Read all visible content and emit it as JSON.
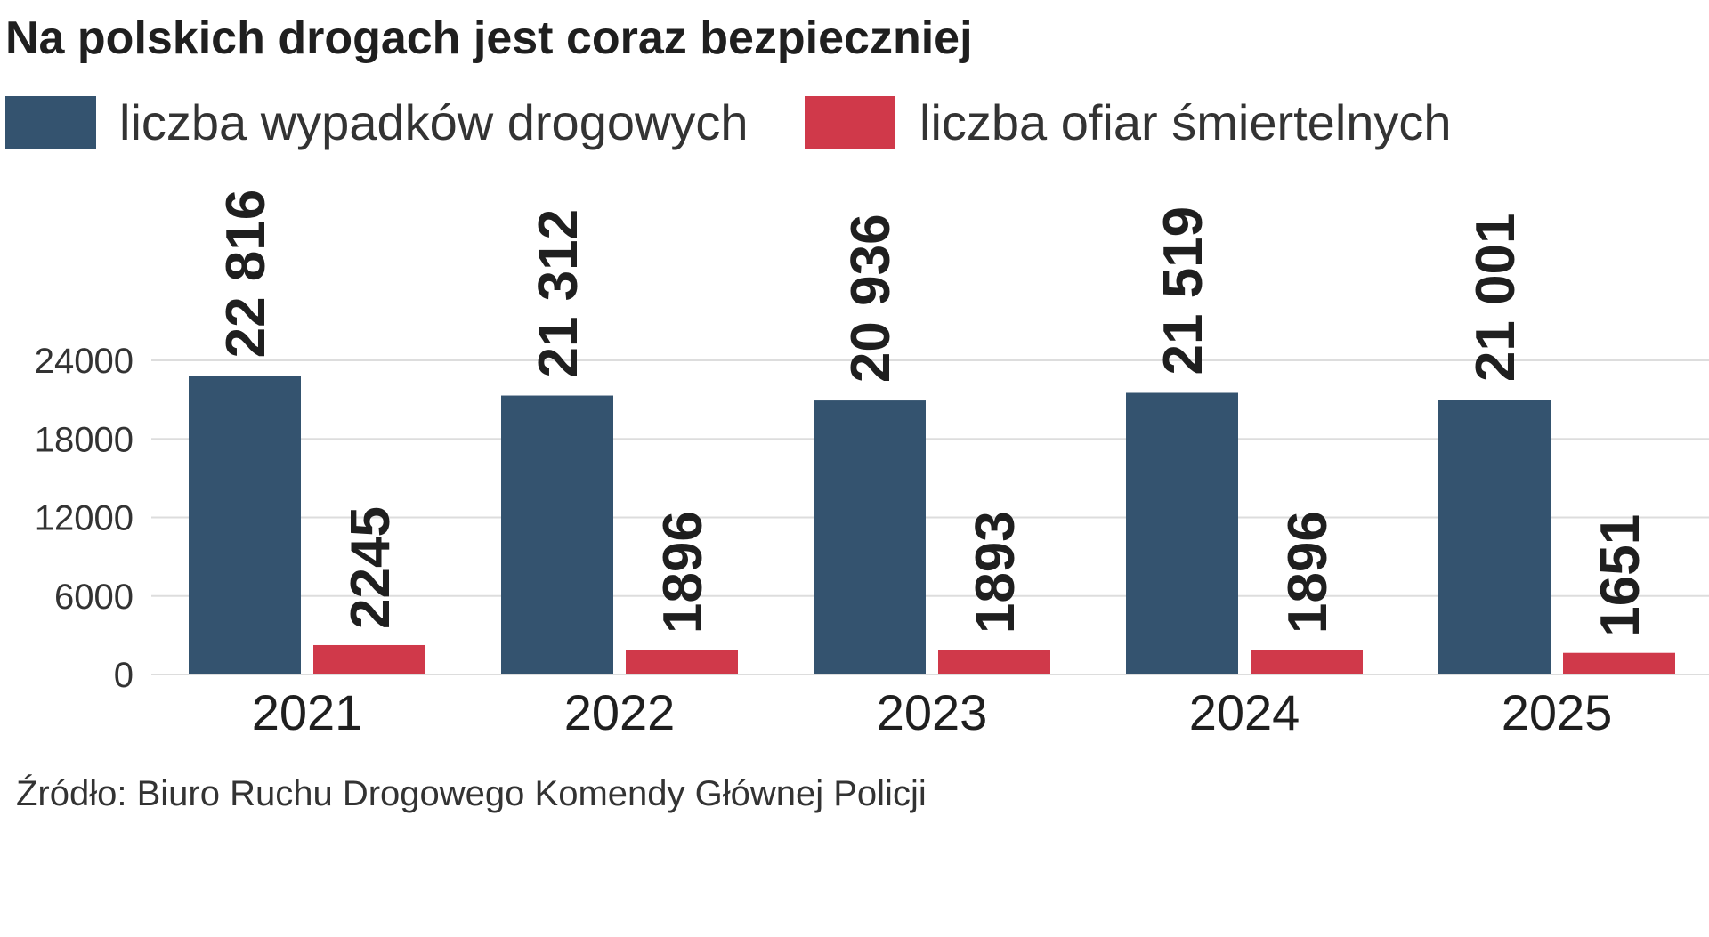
{
  "chart_data": {
    "type": "bar",
    "title": "Na polskich drogach jest coraz bezpieczniej",
    "categories": [
      "2021",
      "2022",
      "2023",
      "2024",
      "2025"
    ],
    "series": [
      {
        "name": "liczba wypadków drogowych",
        "values": [
          22816,
          21312,
          20936,
          21519,
          21001
        ],
        "labels": [
          "22 816",
          "21 312",
          "20 936",
          "21 519",
          "21 001"
        ],
        "color": "#34536f"
      },
      {
        "name": "liczba ofiar śmiertelnych",
        "values": [
          2245,
          1896,
          1893,
          1896,
          1651
        ],
        "labels": [
          "2245",
          "1896",
          "1893",
          "1896",
          "1651"
        ],
        "color": "#d0394a"
      }
    ],
    "yticks": [
      "0",
      "6000",
      "12000",
      "18000",
      "24000"
    ],
    "ylim": [
      0,
      24000
    ],
    "grid": true,
    "legend": "top-left",
    "source": "Źródło: Biuro Ruchu Drogowego Komendy Głównej Policji"
  }
}
